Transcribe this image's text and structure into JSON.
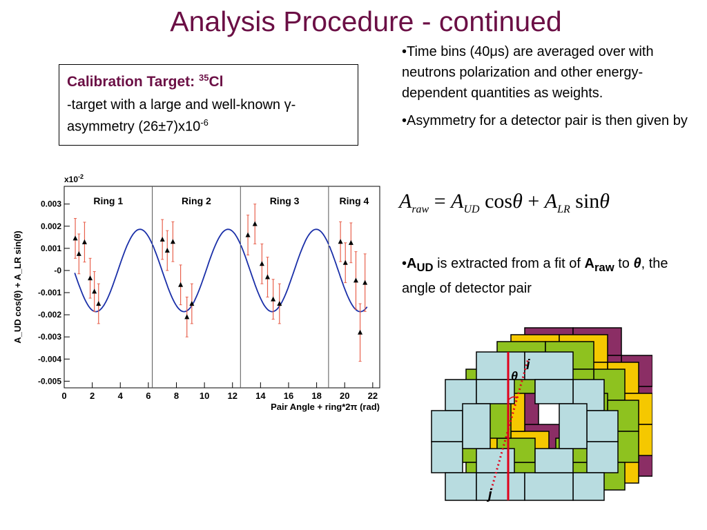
{
  "slide": {
    "title": "Analysis Procedure - continued",
    "cal_box": {
      "heading": "Calibration Target: ",
      "heading_sup": "35",
      "heading_el": "Cl",
      "line1": "-target with a large and well-known γ-asymmetry (26±7)x10",
      "line1_sup": "-6"
    },
    "bullets": [
      "•Time bins (40μs) are averaged over with neutrons polarization and other energy-dependent quantities as weights.",
      "•Asymmetry for a detector pair is then given by"
    ],
    "equation": {
      "lhs": "A",
      "lhs_sub": "raw",
      "eq": "=",
      "t1": "A",
      "t1_sub": "UD",
      "t1_fn": "cos",
      "theta1": "θ",
      "plus": "+",
      "t2": "A",
      "t2_sub": "LR",
      "t2_fn": "sin",
      "theta2": "θ"
    },
    "bullet3": {
      "pre": "•",
      "a": "A",
      "a_sub": "UD",
      "mid": " is extracted from a fit of ",
      "b": "A",
      "b_sub": "raw",
      "post1": " to ",
      "theta": "θ",
      "post2": ", the angle of detector pair"
    },
    "diagram": {
      "label_i": "i",
      "label_j": "j",
      "label_theta": "θ"
    }
  },
  "chart_data": {
    "type": "scatter",
    "title": "",
    "xlabel": "Pair Angle + ring*2π (rad)",
    "ylabel": "A_UD cos(θ) + A_LR sin(θ)",
    "y_multiplier": "x10",
    "y_multiplier_exp": "-2",
    "xlim": [
      0,
      22.5
    ],
    "ylim": [
      -0.0053,
      0.0038
    ],
    "x_ticks": [
      0,
      2,
      4,
      6,
      8,
      10,
      12,
      14,
      16,
      18,
      20,
      22
    ],
    "y_ticks": [
      0.003,
      0.002,
      0.001,
      0,
      -0.001,
      -0.002,
      -0.003,
      -0.004,
      -0.005
    ],
    "y_tick_labels": [
      "0.003",
      "0.002",
      "0.001",
      "-0",
      "-0.001",
      "-0.002",
      "-0.003",
      "-0.004",
      "-0.005"
    ],
    "ring_boundaries": [
      6.28,
      12.57,
      18.85
    ],
    "rings": [
      "Ring 1",
      "Ring 2",
      "Ring 3",
      "Ring 4"
    ],
    "fit": {
      "amplitude": 0.00186,
      "phase": 2.45,
      "description": "sinusoidal fit"
    },
    "points": [
      {
        "x": 0.79,
        "y": 0.00145,
        "err": 0.0009
      },
      {
        "x": 1.05,
        "y": 0.00075,
        "err": 0.0009
      },
      {
        "x": 1.45,
        "y": 0.00128,
        "err": 0.0009
      },
      {
        "x": 1.85,
        "y": -0.00035,
        "err": 0.0009
      },
      {
        "x": 2.15,
        "y": -0.00095,
        "err": 0.0009
      },
      {
        "x": 2.45,
        "y": -0.0015,
        "err": 0.0009
      },
      {
        "x": 7.0,
        "y": 0.0014,
        "err": 0.0009
      },
      {
        "x": 7.35,
        "y": 0.0009,
        "err": 0.0009
      },
      {
        "x": 7.75,
        "y": 0.0013,
        "err": 0.0009
      },
      {
        "x": 8.3,
        "y": -0.00065,
        "err": 0.0009
      },
      {
        "x": 8.75,
        "y": -0.0021,
        "err": 0.0009
      },
      {
        "x": 9.1,
        "y": -0.0015,
        "err": 0.0009
      },
      {
        "x": 13.1,
        "y": 0.0016,
        "err": 0.0009
      },
      {
        "x": 13.6,
        "y": 0.0021,
        "err": 0.0009
      },
      {
        "x": 14.1,
        "y": 0.0003,
        "err": 0.0009
      },
      {
        "x": 14.5,
        "y": -0.0003,
        "err": 0.0009
      },
      {
        "x": 14.9,
        "y": -0.0013,
        "err": 0.0009
      },
      {
        "x": 15.35,
        "y": -0.0015,
        "err": 0.0009
      },
      {
        "x": 19.7,
        "y": 0.0013,
        "err": 0.0009
      },
      {
        "x": 20.05,
        "y": 0.00035,
        "err": 0.0009
      },
      {
        "x": 20.45,
        "y": 0.00125,
        "err": 0.0009
      },
      {
        "x": 20.8,
        "y": -0.00045,
        "err": 0.0013
      },
      {
        "x": 21.1,
        "y": -0.0028,
        "err": 0.0013
      },
      {
        "x": 21.45,
        "y": -0.00055,
        "err": 0.0013
      }
    ]
  }
}
